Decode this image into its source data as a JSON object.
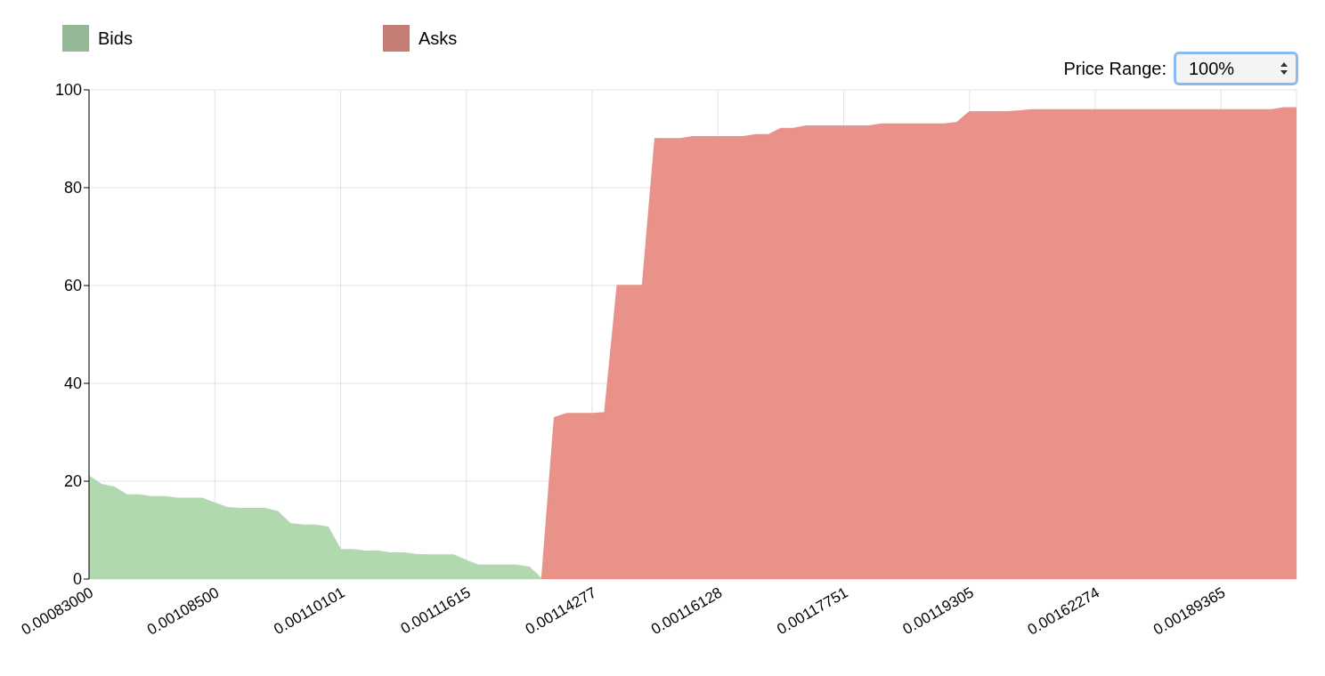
{
  "chart_data": {
    "type": "area",
    "categories": [
      "0.00083000",
      null,
      null,
      null,
      null,
      null,
      null,
      null,
      null,
      null,
      "0.00108500",
      null,
      null,
      null,
      null,
      null,
      null,
      null,
      null,
      null,
      "0.00110101",
      null,
      null,
      null,
      null,
      null,
      null,
      null,
      null,
      null,
      "0.00111615",
      null,
      null,
      null,
      null,
      null,
      null,
      null,
      null,
      null,
      "0.00114277",
      null,
      null,
      null,
      null,
      null,
      null,
      null,
      null,
      null,
      "0.00116128",
      null,
      null,
      null,
      null,
      null,
      null,
      null,
      null,
      null,
      "0.00117751",
      null,
      null,
      null,
      null,
      null,
      null,
      null,
      null,
      null,
      "0.00119305",
      null,
      null,
      null,
      null,
      null,
      null,
      null,
      null,
      null,
      "0.00162274",
      null,
      null,
      null,
      null,
      null,
      null,
      null,
      null,
      null,
      "0.00189365",
      null,
      null,
      null,
      null,
      null,
      null
    ],
    "series": [
      {
        "name": "Bids",
        "color": "#b2d8b0",
        "values": [
          21,
          19.3,
          18.8,
          17.2,
          17.2,
          16.8,
          16.8,
          16.5,
          16.5,
          16.5,
          15.5,
          14.6,
          14.4,
          14.4,
          14.4,
          13.8,
          11.3,
          11,
          11,
          10.6,
          6,
          6,
          5.7,
          5.7,
          5.3,
          5.3,
          5,
          4.9,
          4.9,
          4.9,
          3.8,
          2.8,
          2.8,
          2.8,
          2.8,
          2.4,
          0,
          null,
          null,
          null,
          null,
          null,
          null,
          null,
          null,
          null,
          null,
          null,
          null,
          null,
          null,
          null,
          null,
          null,
          null,
          null,
          null,
          null,
          null,
          null,
          null,
          null,
          null,
          null,
          null,
          null,
          null,
          null,
          null,
          null,
          null,
          null,
          null,
          null,
          null,
          null,
          null,
          null,
          null,
          null,
          null,
          null,
          null,
          null,
          null,
          null,
          null,
          null,
          null,
          null,
          null,
          null,
          null,
          null,
          null,
          null,
          null
        ]
      },
      {
        "name": "Asks",
        "color": "#e8928a",
        "values": [
          null,
          null,
          null,
          null,
          null,
          null,
          null,
          null,
          null,
          null,
          null,
          null,
          null,
          null,
          null,
          null,
          null,
          null,
          null,
          null,
          null,
          null,
          null,
          null,
          null,
          null,
          null,
          null,
          null,
          null,
          null,
          null,
          null,
          null,
          null,
          null,
          0,
          33,
          33.8,
          33.8,
          33.8,
          34,
          60,
          60,
          60,
          90,
          90,
          90,
          90.4,
          90.4,
          90.4,
          90.4,
          90.4,
          90.8,
          90.8,
          92.1,
          92.1,
          92.6,
          92.6,
          92.6,
          92.6,
          92.6,
          92.6,
          93,
          93,
          93,
          93,
          93,
          93,
          93.3,
          95.5,
          95.5,
          95.5,
          95.5,
          95.7,
          95.9,
          95.9,
          95.9,
          95.9,
          95.9,
          95.9,
          95.9,
          95.9,
          95.9,
          95.9,
          95.9,
          95.9,
          95.9,
          95.9,
          95.9,
          95.9,
          95.9,
          95.9,
          95.9,
          95.9,
          96.3,
          96.3
        ]
      }
    ],
    "ylim": [
      0,
      100
    ],
    "yticks": [
      0,
      20,
      40,
      60,
      80,
      100
    ],
    "grid": true,
    "legend": "top left",
    "annotations": [
      "Price Range:",
      "100%"
    ]
  }
}
